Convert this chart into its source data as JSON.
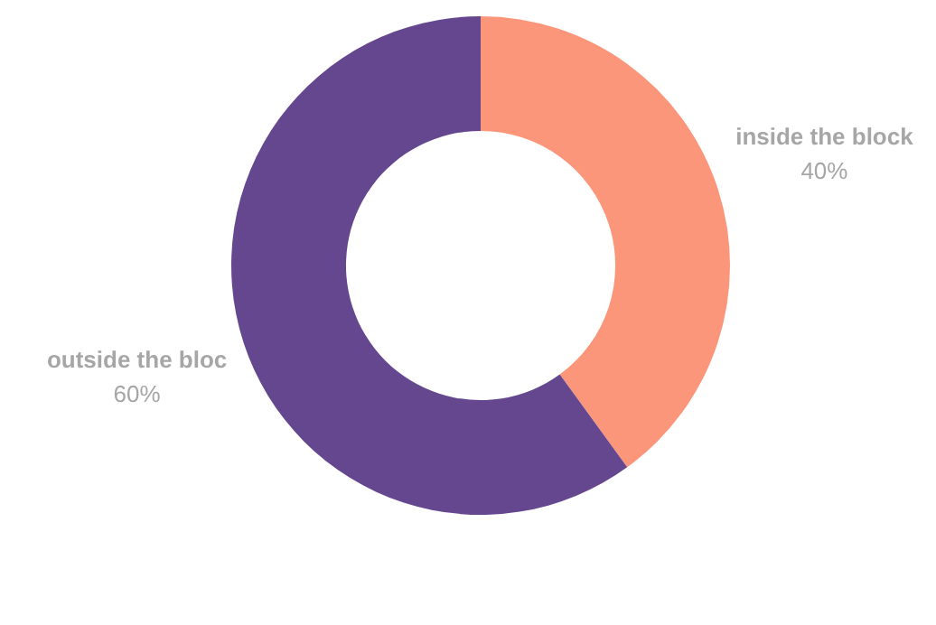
{
  "chart_data": {
    "type": "donut",
    "categories": [
      "inside the block",
      "outside the bloc"
    ],
    "values": [
      40,
      60
    ],
    "colors": [
      "#fc967a",
      "#65478f"
    ],
    "value_labels": [
      "40%",
      "60%"
    ],
    "legend": false
  }
}
